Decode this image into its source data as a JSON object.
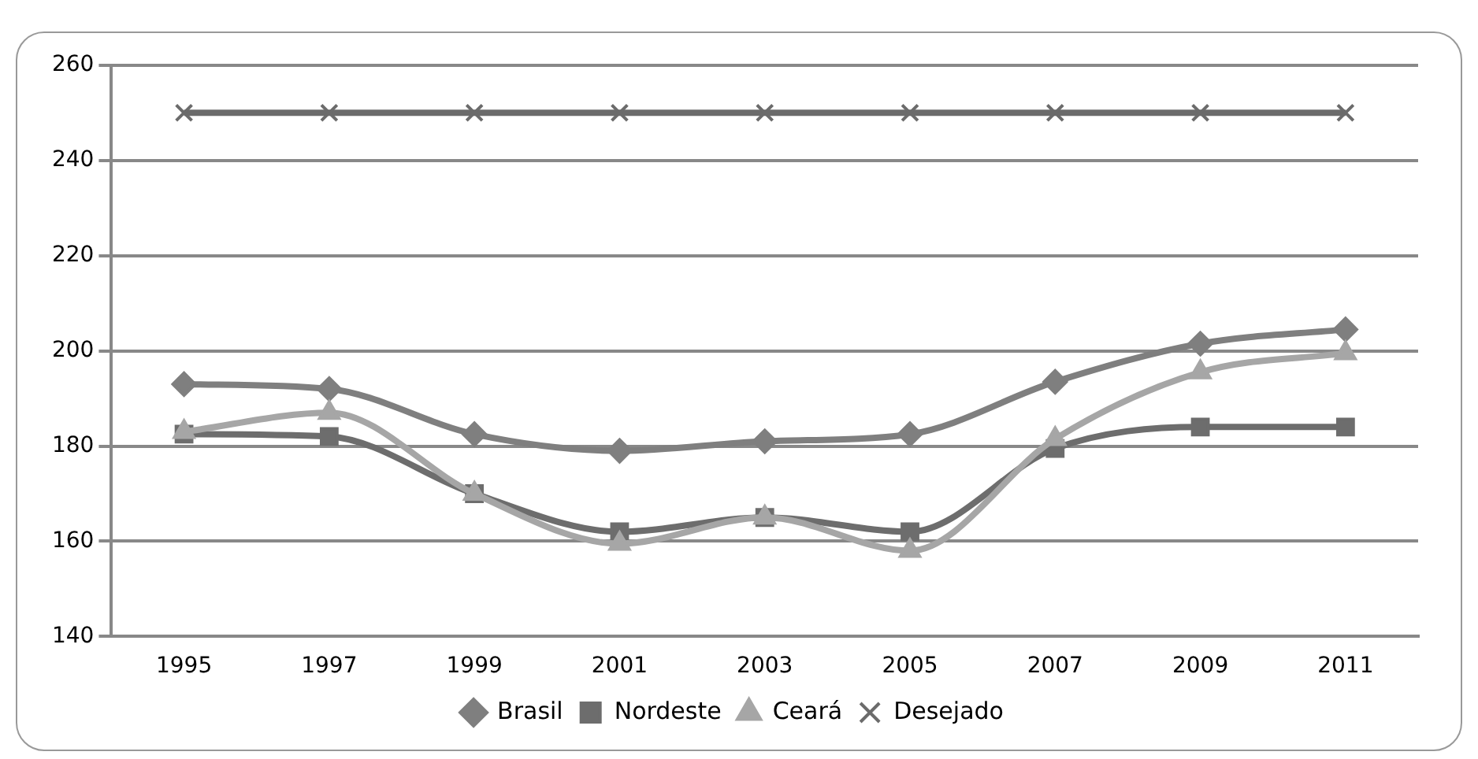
{
  "chart_data": {
    "type": "line",
    "categories": [
      "1995",
      "1997",
      "1999",
      "2001",
      "2003",
      "2005",
      "2007",
      "2009",
      "2011"
    ],
    "series": [
      {
        "name": "Brasil",
        "color": "#7f7f7f",
        "marker": "diamond",
        "values": [
          193,
          192,
          182.5,
          179,
          181,
          182.5,
          193.5,
          201.5,
          204.5
        ]
      },
      {
        "name": "Nordeste",
        "color": "#6d6d6d",
        "marker": "square",
        "values": [
          182.5,
          182,
          170,
          162,
          165,
          162,
          179.5,
          184,
          184
        ]
      },
      {
        "name": "Ceará",
        "color": "#a6a6a6",
        "marker": "triangle",
        "values": [
          183,
          187,
          170,
          159.5,
          165,
          158,
          181.5,
          195.5,
          199.5
        ]
      },
      {
        "name": "Desejado",
        "color": "#6b6b6b",
        "marker": "cross",
        "values": [
          250,
          250,
          250,
          250,
          250,
          250,
          250,
          250,
          250
        ]
      }
    ],
    "ylim": [
      140,
      260
    ],
    "yticks": [
      140,
      160,
      180,
      200,
      220,
      240,
      260
    ],
    "grid": "y",
    "legend": "bottom"
  }
}
